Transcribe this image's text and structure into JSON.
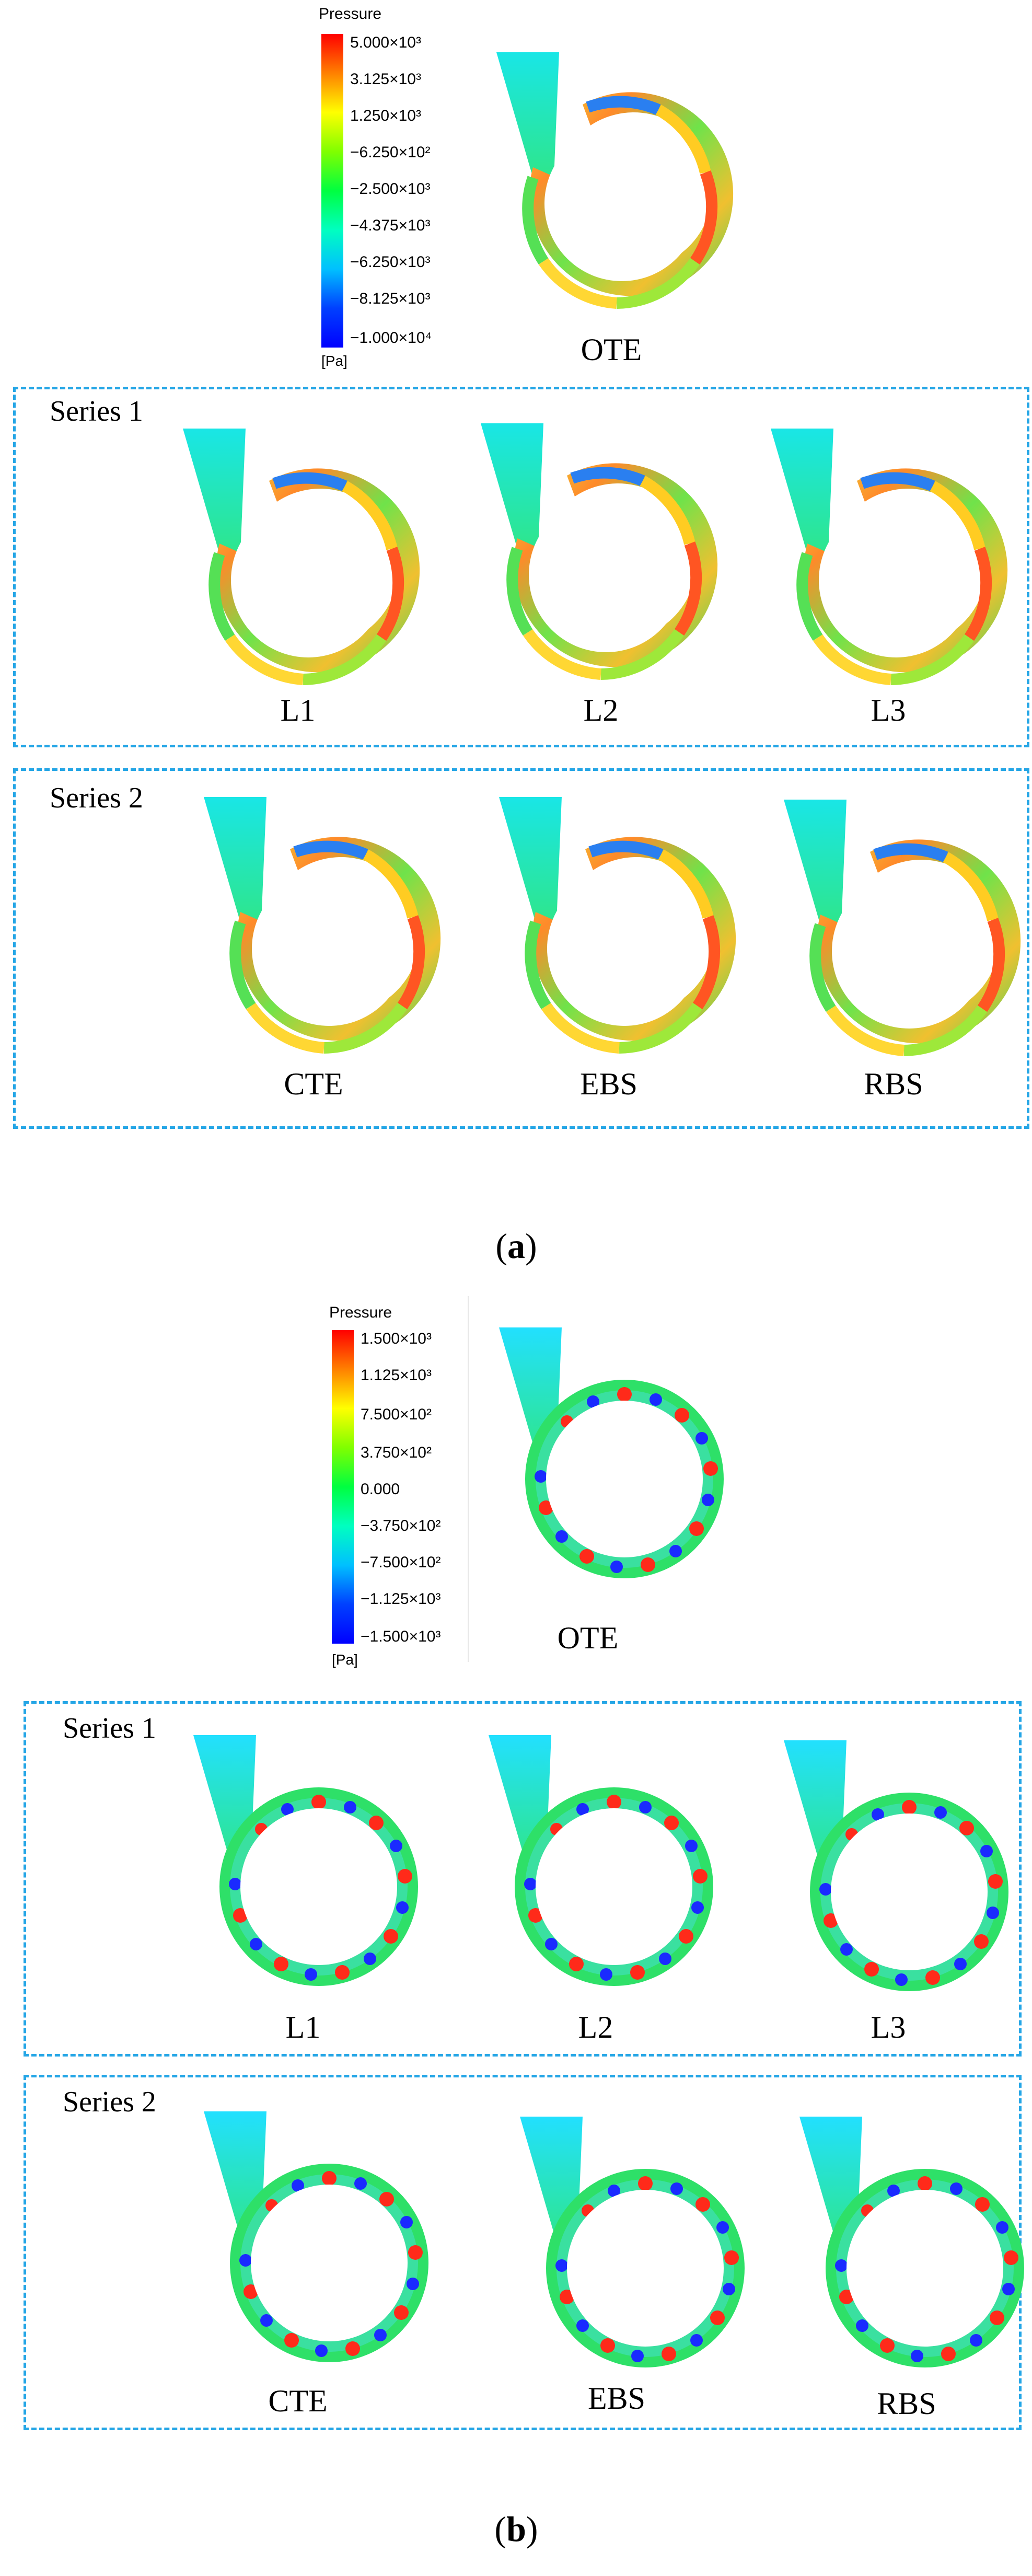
{
  "figure_a": {
    "label": "a",
    "colorbar": {
      "title": "Pressure",
      "unit": "[Pa]",
      "ticks": [
        "5.000×10³",
        "3.125×10³",
        "1.250×10³",
        "−6.250×10²",
        "−2.500×10³",
        "−4.375×10³",
        "−6.250×10³",
        "−8.125×10³",
        "−1.000×10⁴"
      ]
    },
    "reference_case": "OTE",
    "series": [
      {
        "name": "Series 1",
        "cases": [
          "L1",
          "L2",
          "L3"
        ]
      },
      {
        "name": "Series 2",
        "cases": [
          "CTE",
          "EBS",
          "RBS"
        ]
      }
    ]
  },
  "figure_b": {
    "label": "b",
    "colorbar": {
      "title": "Pressure",
      "unit": "[Pa]",
      "ticks": [
        "1.500×10³",
        "1.125×10³",
        "7.500×10²",
        "3.750×10²",
        "0.000",
        "−3.750×10²",
        "−7.500×10²",
        "−1.125×10³",
        "−1.500×10³"
      ]
    },
    "reference_case": "OTE",
    "series": [
      {
        "name": "Series 1",
        "cases": [
          "L1",
          "L2",
          "L3"
        ]
      },
      {
        "name": "Series 2",
        "cases": [
          "CTE",
          "EBS",
          "RBS"
        ]
      }
    ]
  },
  "colors": {
    "dashed_border": "#25a6e6",
    "scale": [
      "#ff0000",
      "#ff8000",
      "#ffff00",
      "#80ff00",
      "#00ff40",
      "#00ffc0",
      "#00c0ff",
      "#0040ff",
      "#0000ff"
    ]
  }
}
